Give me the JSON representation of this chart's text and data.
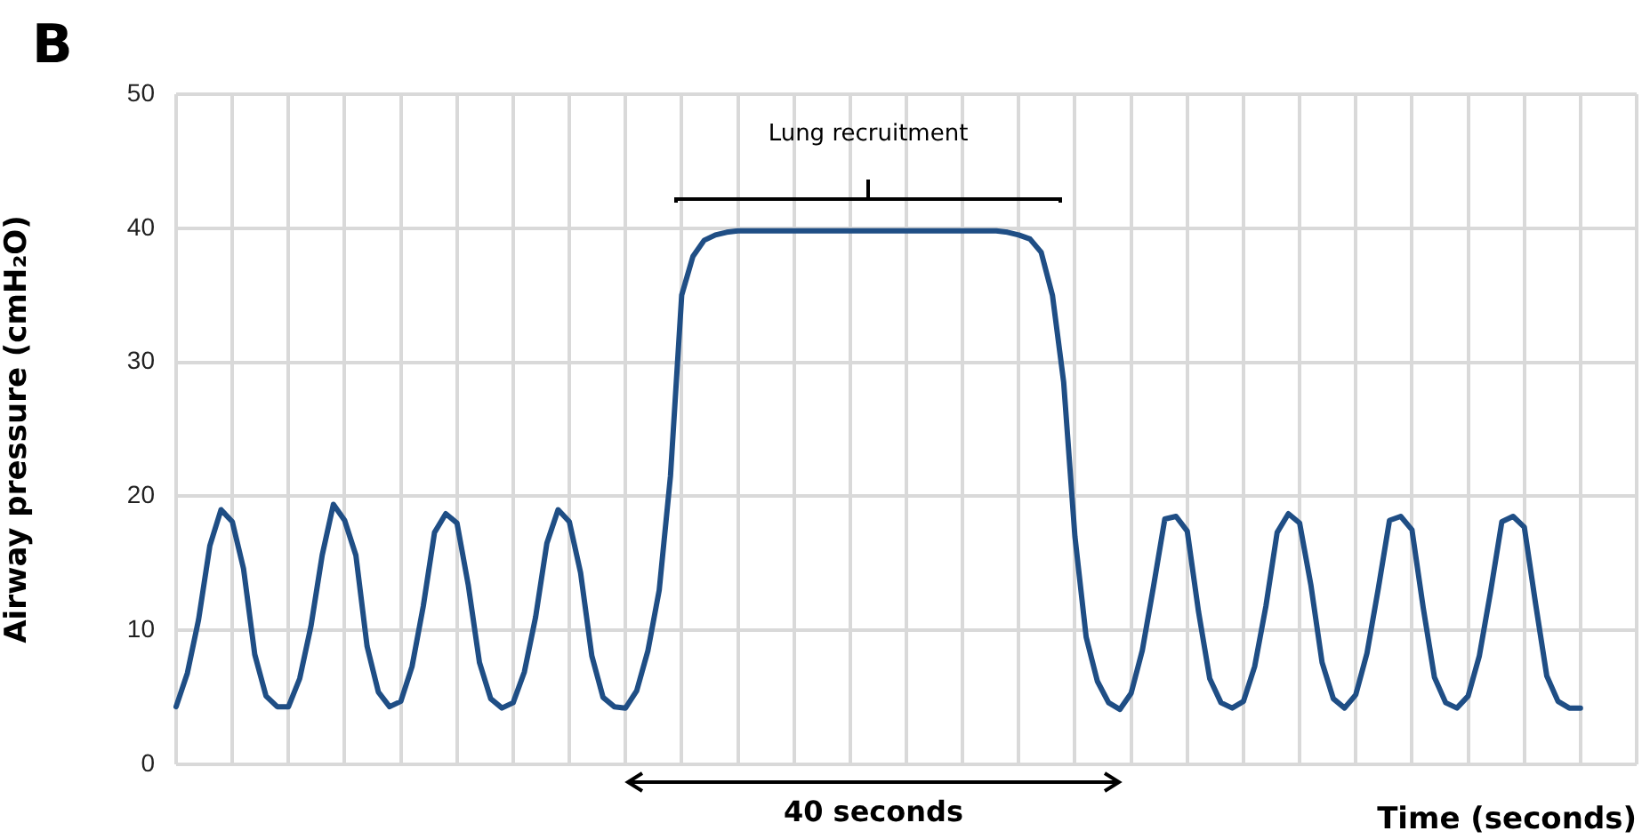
{
  "chart_data": {
    "type": "line",
    "title": "B",
    "ylabel": "Airway pressure (cmH₂O)",
    "xlabel": "Time (seconds)",
    "categories": [
      null,
      null,
      null,
      null,
      null,
      null,
      null,
      null,
      null,
      null,
      null,
      null,
      null,
      null,
      null,
      null,
      null,
      null,
      null,
      null,
      null,
      null,
      null,
      null,
      null,
      null,
      null,
      null,
      null,
      null,
      null,
      null,
      null,
      null,
      null,
      null,
      null,
      null,
      null,
      null,
      null,
      null,
      null,
      null,
      null,
      null,
      null,
      null,
      null,
      null,
      null,
      null,
      null,
      null,
      null,
      null,
      null,
      null,
      null,
      null,
      null,
      null,
      null,
      null,
      null,
      null,
      null,
      null,
      null,
      null,
      null,
      null,
      null,
      null,
      null,
      null,
      null,
      null,
      null,
      null,
      null,
      null,
      null,
      null,
      null,
      null,
      null,
      null,
      null,
      null,
      null,
      null,
      null,
      null,
      null,
      null,
      null,
      null,
      null,
      null,
      null,
      null,
      null,
      null,
      null,
      null,
      null,
      null,
      null,
      null,
      null,
      null,
      null,
      null,
      null,
      null,
      null,
      null,
      null,
      null,
      null,
      null,
      null,
      null,
      null,
      null,
      null,
      null,
      null,
      null,
      null
    ],
    "series": [
      {
        "color": "#1f4e85",
        "values": [
          4.3,
          6.8,
          10.8,
          16.3,
          19.0,
          18.1,
          14.6,
          8.2,
          5.1,
          4.3,
          4.3,
          6.4,
          10.3,
          15.6,
          19.4,
          18.2,
          15.6,
          8.8,
          5.4,
          4.3,
          4.7,
          7.3,
          11.8,
          17.3,
          18.7,
          18.0,
          13.4,
          7.6,
          4.9,
          4.2,
          4.6,
          6.9,
          11.0,
          16.5,
          19.0,
          18.1,
          14.3,
          8.1,
          5.0,
          4.3,
          4.2,
          5.5,
          8.5,
          13.0,
          21.5,
          35.0,
          37.9,
          39.1,
          39.5,
          39.7,
          39.8,
          39.8,
          39.8,
          39.8,
          39.8,
          39.8,
          39.8,
          39.8,
          39.8,
          39.8,
          39.8,
          39.8,
          39.8,
          39.8,
          39.8,
          39.8,
          39.8,
          39.8,
          39.8,
          39.8,
          39.8,
          39.8,
          39.8,
          39.8,
          39.7,
          39.5,
          39.2,
          38.2,
          35.0,
          28.5,
          17.0,
          9.5,
          6.2,
          4.6,
          4.1,
          5.3,
          8.5,
          13.3,
          18.3,
          18.5,
          17.4,
          11.4,
          6.4,
          4.6,
          4.2,
          4.7,
          7.3,
          11.8,
          17.3,
          18.7,
          18.0,
          13.4,
          7.6,
          4.9,
          4.2,
          5.2,
          8.3,
          13.1,
          18.2,
          18.5,
          17.5,
          11.7,
          6.5,
          4.6,
          4.2,
          5.1,
          8.1,
          12.9,
          18.1,
          18.5,
          17.7,
          12.0,
          6.6,
          4.7,
          4.2,
          4.2,
          null,
          null,
          null,
          null,
          null
        ]
      }
    ],
    "ylim": [
      0,
      50
    ],
    "yticks": [
      0,
      10,
      20,
      30,
      40,
      50
    ],
    "grid": true,
    "tick_labels": "y",
    "legend": false,
    "marker": "none",
    "line_style": "solid",
    "annotations": [
      "Lung recruitment",
      "40 seconds"
    ]
  }
}
